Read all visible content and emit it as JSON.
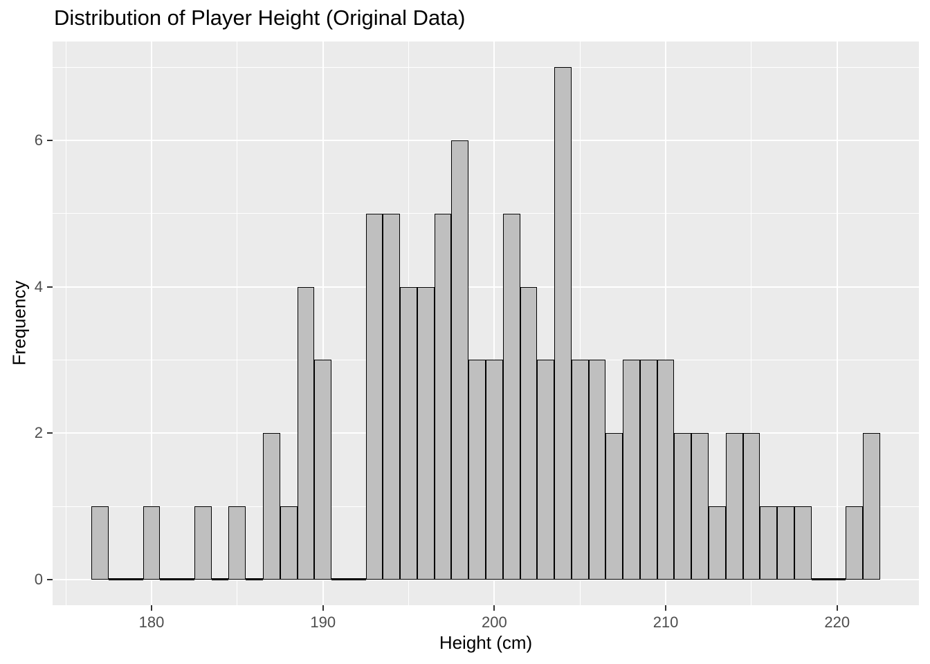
{
  "chart_data": {
    "type": "bar",
    "subtype": "histogram",
    "title": "Distribution of Player Height (Original Data)",
    "xlabel": "Height (cm)",
    "ylabel": "Frequency",
    "x_domain": [
      174.225,
      224.775
    ],
    "y_domain": [
      -0.35,
      7.35
    ],
    "x_major_ticks": [
      180,
      190,
      200,
      210,
      220
    ],
    "x_minor_ticks": [
      175,
      185,
      195,
      205,
      215
    ],
    "y_major_ticks": [
      0,
      2,
      4,
      6
    ],
    "y_minor_ticks": [
      1,
      3,
      5,
      7
    ],
    "bin_width": 1,
    "bin_centers": [
      177,
      178,
      179,
      180,
      181,
      182,
      183,
      184,
      185,
      186,
      187,
      188,
      189,
      190,
      191,
      192,
      193,
      194,
      195,
      196,
      197,
      198,
      199,
      200,
      201,
      202,
      203,
      204,
      205,
      206,
      207,
      208,
      209,
      210,
      211,
      212,
      213,
      214,
      215,
      216,
      217,
      218,
      219,
      220,
      221,
      222
    ],
    "counts": [
      1,
      0,
      0,
      1,
      0,
      0,
      1,
      0,
      1,
      0,
      2,
      1,
      4,
      3,
      0,
      0,
      5,
      5,
      4,
      4,
      5,
      6,
      3,
      3,
      5,
      4,
      3,
      7,
      3,
      3,
      2,
      3,
      3,
      3,
      2,
      2,
      1,
      2,
      2,
      1,
      1,
      1,
      0,
      0,
      1,
      2
    ],
    "legend": "none",
    "grid": "on",
    "colors": {
      "panel_background": "#ebebeb",
      "gridline": "#ffffff",
      "bar_fill": "#bfbfbf",
      "bar_stroke": "#000000",
      "tick_label": "#4d4d4d",
      "tick_mark": "#333333",
      "text": "#000000",
      "figure_background": "#ffffff"
    }
  }
}
